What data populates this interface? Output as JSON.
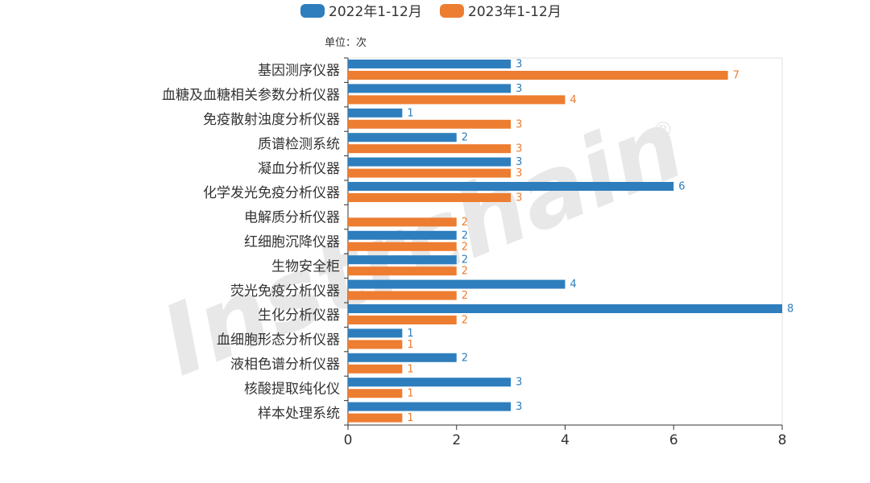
{
  "chart_data": {
    "type": "bar",
    "orientation": "horizontal",
    "unit_label": "单位：次",
    "categories": [
      "基因测序仪器",
      "血糖及血糖相关参数分析仪器",
      "免疫散射浊度分析仪器",
      "质谱检测系统",
      "凝血分析仪器",
      "化学发光免疫分析仪器",
      "电解质分析仪器",
      "红细胞沉降仪器",
      "生物安全柜",
      "荧光免疫分析仪器",
      "生化分析仪器",
      "血细胞形态分析仪器",
      "液相色谱分析仪器",
      "核酸提取纯化仪",
      "样本处理系统"
    ],
    "series": [
      {
        "name": "2022年1-12月",
        "color": "#2e7ebd",
        "values": [
          3,
          3,
          1,
          2,
          3,
          6,
          null,
          2,
          2,
          4,
          8,
          1,
          2,
          3,
          3
        ]
      },
      {
        "name": "2023年1-12月",
        "color": "#ed7d31",
        "values": [
          7,
          4,
          3,
          3,
          3,
          3,
          2,
          2,
          2,
          2,
          2,
          1,
          1,
          1,
          1
        ]
      }
    ],
    "xlim": [
      0,
      8
    ],
    "xticks": [
      0,
      2,
      4,
      6,
      8
    ],
    "legend_position": "top-center",
    "grid": false
  },
  "watermark": {
    "text": "Instrchain",
    "registered_mark": "®"
  }
}
